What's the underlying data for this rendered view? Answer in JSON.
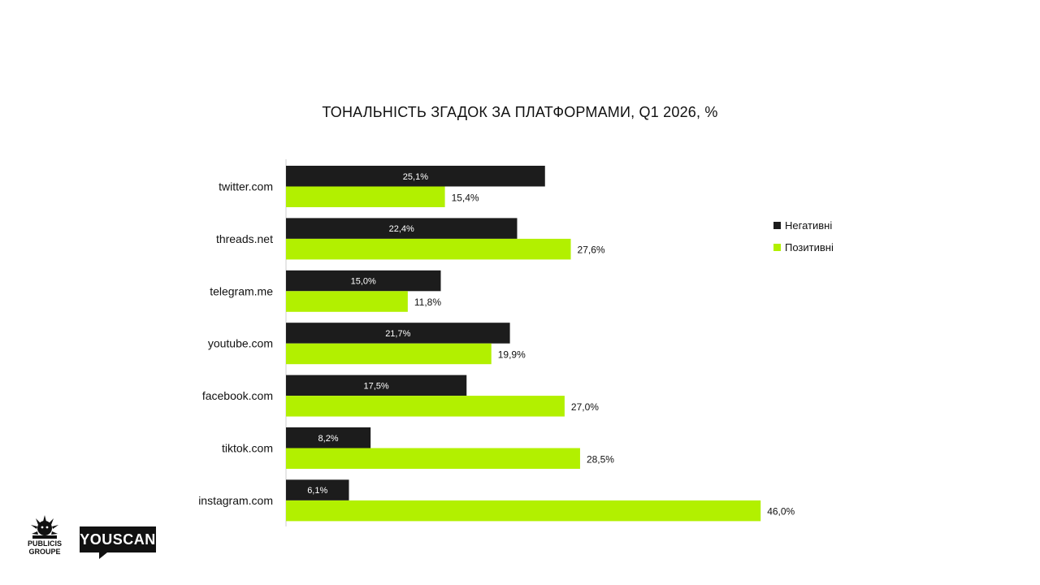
{
  "chart_data": {
    "type": "bar",
    "orientation": "horizontal",
    "title": "ТОНАЛЬНІСТЬ ЗГАДОК ЗА ПЛАТФОРМАМИ, Q1 2026, %",
    "categories": [
      "twitter.com",
      "threads.net",
      "telegram.me",
      "youtube.com",
      "facebook.com",
      "tiktok.com",
      "instagram.com"
    ],
    "series": [
      {
        "name": "Негативні",
        "color": "#1c1c1c",
        "values": [
          25.1,
          22.4,
          15.0,
          21.7,
          17.5,
          8.2,
          6.1
        ],
        "labels": [
          "25,1%",
          "22,4%",
          "15,0%",
          "21,7%",
          "17,5%",
          "8,2%",
          "6,1%"
        ]
      },
      {
        "name": "Позитивні",
        "color": "#b2f000",
        "values": [
          15.4,
          27.6,
          11.8,
          19.9,
          27.0,
          28.5,
          46.0
        ],
        "labels": [
          "15,4%",
          "27,6%",
          "11,8%",
          "19,9%",
          "27,0%",
          "28,5%",
          "46,0%"
        ]
      }
    ],
    "xlim": [
      0,
      50
    ],
    "grid": false,
    "legend_position": "right"
  },
  "logos": {
    "publicis_line1": "PUBLICIS",
    "publicis_line2": "GROUPE",
    "youscan": "YOUSCAN"
  }
}
